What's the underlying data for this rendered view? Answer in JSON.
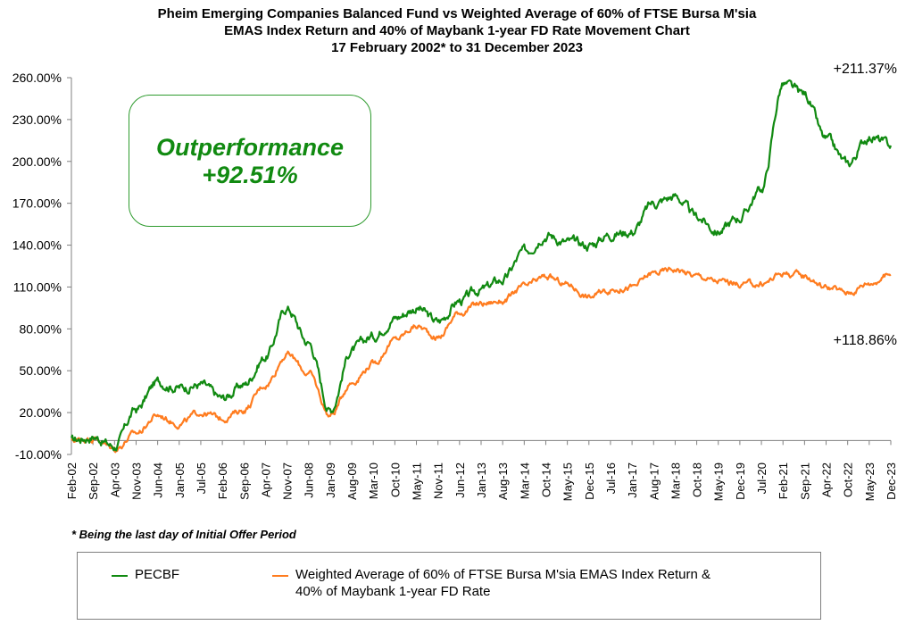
{
  "title_lines": [
    "Pheim Emerging Companies Balanced Fund vs Weighted Average of 60%  of FTSE Bursa M'sia",
    "EMAS Index Return and 40%  of Maybank 1-year FD Rate Movement Chart",
    "17 February 2002* to 31 December 2023"
  ],
  "annotation": {
    "line1": "Outperformance",
    "line2": "+92.51%"
  },
  "end_labels": {
    "fund": "+211.37%",
    "benchmark": "+118.86%"
  },
  "footnote": "* Being the last day of Initial Offer Period",
  "legend": {
    "fund": "PECBF",
    "benchmark_line1": "Weighted Average of 60% of FTSE Bursa M'sia EMAS Index Return &",
    "benchmark_line2": "40% of Maybank 1-year FD Rate"
  },
  "colors": {
    "fund": "#118a11",
    "benchmark": "#ff7c1f",
    "axis": "#808080",
    "box_border": "#2e9b2e"
  },
  "chart_data": {
    "type": "line",
    "title": "Pheim Emerging Companies Balanced Fund vs Weighted Average of 60% of FTSE Bursa M'sia EMAS Index Return and 40% of Maybank 1-year FD Rate Movement Chart",
    "subtitle": "17 February 2002* to 31 December 2023",
    "xlabel": "",
    "ylabel": "",
    "ylim": [
      -10,
      260
    ],
    "yticks": [
      -10,
      20,
      50,
      80,
      110,
      140,
      170,
      200,
      230,
      260
    ],
    "ytick_labels": [
      "-10.00%",
      "20.00%",
      "50.00%",
      "80.00%",
      "110.00%",
      "140.00%",
      "170.00%",
      "200.00%",
      "230.00%",
      "260.00%"
    ],
    "x": [
      "Feb-02",
      "Sep-02",
      "Apr-03",
      "Nov-03",
      "Jun-04",
      "Jan-05",
      "Jul-05",
      "Feb-06",
      "Sep-06",
      "Apr-07",
      "Nov-07",
      "Jun-08",
      "Jan-09",
      "Aug-09",
      "Mar-10",
      "Oct-10",
      "May-11",
      "Nov-11",
      "Jun-12",
      "Jan-13",
      "Aug-13",
      "Mar-14",
      "Oct-14",
      "May-15",
      "Dec-15",
      "Jul-16",
      "Jan-17",
      "Aug-17",
      "Mar-18",
      "Oct-18",
      "May-19",
      "Dec-19",
      "Jul-20",
      "Feb-21",
      "Sep-21",
      "Apr-22",
      "Oct-22",
      "May-23",
      "Dec-23"
    ],
    "grid": false,
    "legend_position": "bottom",
    "series": [
      {
        "name": "PECBF",
        "color": "#118a11",
        "values": [
          0,
          3,
          -4,
          22,
          42,
          38,
          40,
          30,
          40,
          60,
          95,
          70,
          22,
          65,
          75,
          88,
          95,
          85,
          100,
          108,
          115,
          135,
          148,
          142,
          140,
          148,
          150,
          170,
          175,
          160,
          150,
          160,
          180,
          255,
          248,
          215,
          198,
          218,
          211.37
        ],
        "end_label": "+211.37%"
      },
      {
        "name": "Weighted Average of 60% of FTSE Bursa M'sia EMAS Index Return & 40% of Maybank 1-year FD Rate",
        "color": "#ff7c1f",
        "values": [
          0,
          2,
          -6,
          5,
          18,
          12,
          20,
          16,
          22,
          40,
          62,
          48,
          18,
          42,
          55,
          72,
          82,
          74,
          92,
          98,
          100,
          110,
          117,
          112,
          103,
          108,
          110,
          120,
          123,
          118,
          114,
          112,
          112,
          120,
          118,
          110,
          106,
          113,
          118.86
        ],
        "end_label": "+118.86%"
      }
    ],
    "annotations": [
      {
        "text": "Outperformance +92.51%"
      }
    ]
  }
}
